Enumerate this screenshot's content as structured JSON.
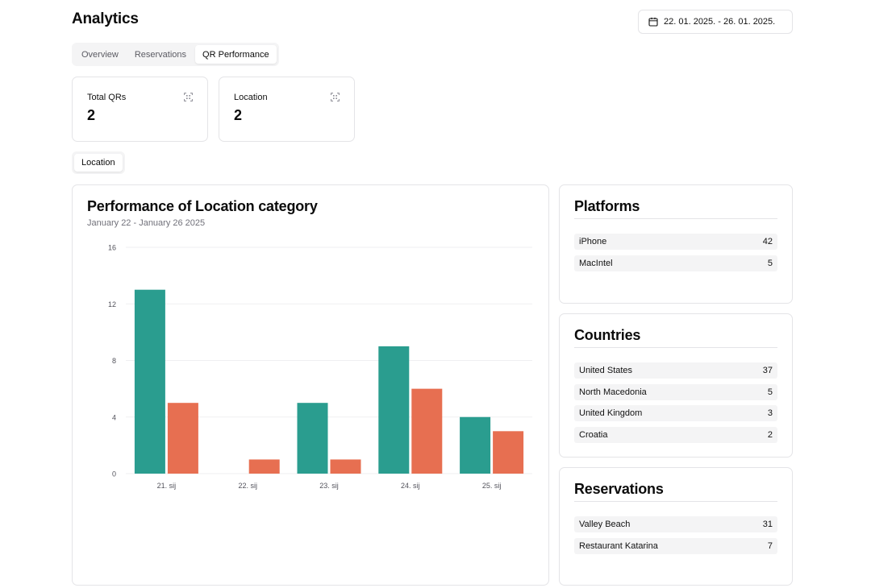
{
  "header": {
    "title": "Analytics",
    "date_range": "22. 01. 2025. - 26. 01. 2025."
  },
  "tabs": [
    {
      "label": "Overview",
      "active": false
    },
    {
      "label": "Reservations",
      "active": false
    },
    {
      "label": "QR Performance",
      "active": true
    }
  ],
  "stats": [
    {
      "label": "Total QRs",
      "value": "2",
      "icon": "qr-scan-icon"
    },
    {
      "label": "Location",
      "value": "2",
      "icon": "qr-scan-icon"
    }
  ],
  "filter": {
    "label": "Location"
  },
  "chart_card": {
    "title": "Performance of Location category",
    "subtitle": "January 22 - January 26 2025"
  },
  "chart_data": {
    "type": "bar",
    "title": "Performance of Location category",
    "subtitle": "January 22 - January 26 2025",
    "categories": [
      "21. sij",
      "22. sij",
      "23. sij",
      "24. sij",
      "25. sij"
    ],
    "series": [
      {
        "values": [
          13,
          0,
          5,
          9,
          4
        ],
        "color": "#2a9d8f"
      },
      {
        "values": [
          5,
          1,
          1,
          6,
          3
        ],
        "color": "#e76f51"
      }
    ],
    "ylim": [
      0,
      16
    ],
    "yticks": [
      0,
      4,
      8,
      12,
      16
    ],
    "grid": true,
    "legend": false
  },
  "platforms": {
    "title": "Platforms",
    "items": [
      {
        "name": "iPhone",
        "count": "42"
      },
      {
        "name": "MacIntel",
        "count": "5"
      }
    ]
  },
  "countries": {
    "title": "Countries",
    "items": [
      {
        "name": "United States",
        "count": "37"
      },
      {
        "name": "North Macedonia",
        "count": "5"
      },
      {
        "name": "United Kingdom",
        "count": "3"
      },
      {
        "name": "Croatia",
        "count": "2"
      }
    ]
  },
  "reservations": {
    "title": "Reservations",
    "items": [
      {
        "name": "Valley Beach",
        "count": "31"
      },
      {
        "name": "Restaurant Katarina",
        "count": "7"
      }
    ]
  }
}
